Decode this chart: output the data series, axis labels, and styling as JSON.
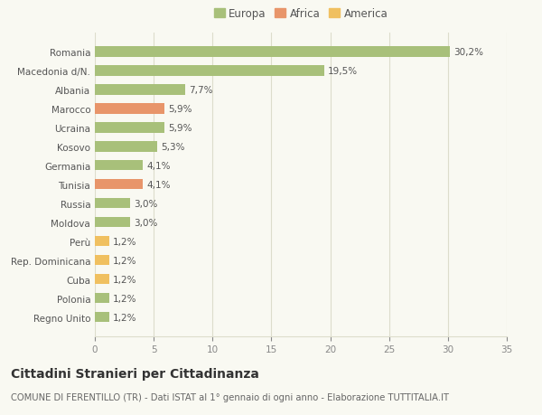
{
  "categories": [
    "Regno Unito",
    "Polonia",
    "Cuba",
    "Rep. Dominicana",
    "Perù",
    "Moldova",
    "Russia",
    "Tunisia",
    "Germania",
    "Kosovo",
    "Ucraina",
    "Marocco",
    "Albania",
    "Macedonia d/N.",
    "Romania"
  ],
  "values": [
    1.2,
    1.2,
    1.2,
    1.2,
    1.2,
    3.0,
    3.0,
    4.1,
    4.1,
    5.3,
    5.9,
    5.9,
    7.7,
    19.5,
    30.2
  ],
  "labels": [
    "1,2%",
    "1,2%",
    "1,2%",
    "1,2%",
    "1,2%",
    "3,0%",
    "3,0%",
    "4,1%",
    "4,1%",
    "5,3%",
    "5,9%",
    "5,9%",
    "7,7%",
    "19,5%",
    "30,2%"
  ],
  "colors": [
    "#a8c07a",
    "#a8c07a",
    "#f0c060",
    "#f0c060",
    "#f0c060",
    "#a8c07a",
    "#a8c07a",
    "#e8956a",
    "#a8c07a",
    "#a8c07a",
    "#a8c07a",
    "#e8956a",
    "#a8c07a",
    "#a8c07a",
    "#a8c07a"
  ],
  "legend_labels": [
    "Europa",
    "Africa",
    "America"
  ],
  "legend_colors": [
    "#a8c07a",
    "#e8956a",
    "#f0c060"
  ],
  "xlim": [
    0,
    35
  ],
  "xticks": [
    0,
    5,
    10,
    15,
    20,
    25,
    30,
    35
  ],
  "title": "Cittadini Stranieri per Cittadinanza",
  "subtitle": "COMUNE DI FERENTILLO (TR) - Dati ISTAT al 1° gennaio di ogni anno - Elaborazione TUTTITALIA.IT",
  "bg_color": "#f9f9f2",
  "grid_color": "#ddddcc",
  "bar_height": 0.55,
  "label_fontsize": 7.5,
  "tick_fontsize": 7.5,
  "legend_fontsize": 8.5,
  "title_fontsize": 10,
  "subtitle_fontsize": 7.2
}
